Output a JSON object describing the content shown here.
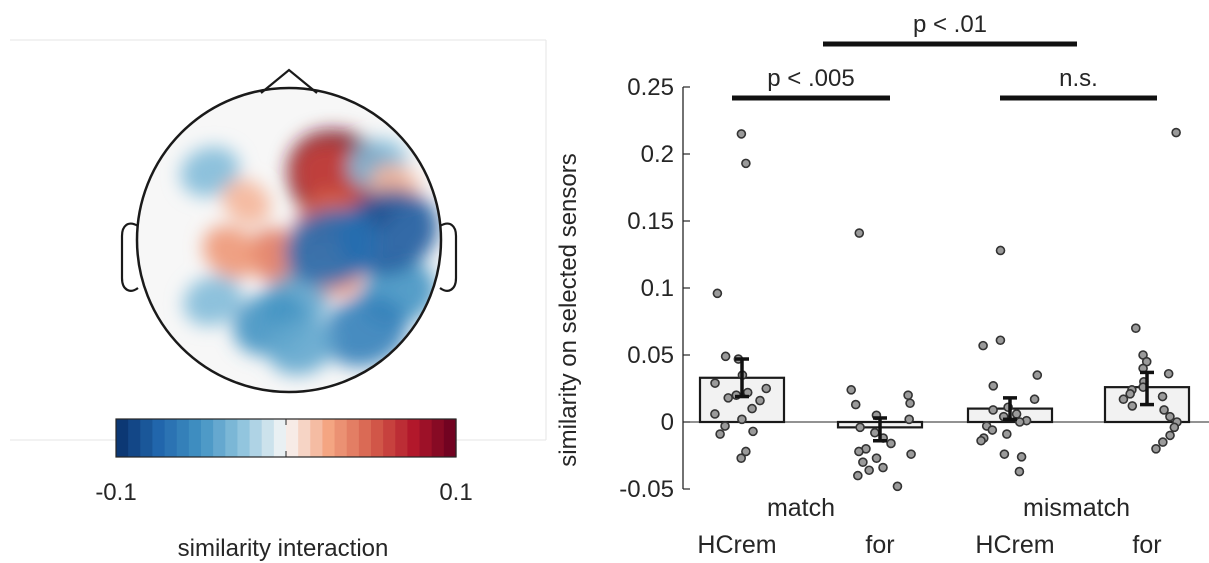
{
  "chart_data": [
    {
      "type": "heatmap",
      "subtype": "scalp-topography",
      "colorbar": {
        "min_label": "-0.1",
        "max_label": "0.1",
        "label": "similarity interaction",
        "low_color": "#08306b",
        "mid_color": "#f7f7f7",
        "high_color": "#67001f"
      },
      "blobs": [
        {
          "cx": 0.36,
          "cy": 0.38,
          "value": 0.11
        },
        {
          "cx": 0.3,
          "cy": 0.4,
          "value": 0.06
        },
        {
          "cx": 0.33,
          "cy": 0.1,
          "value": 0.05
        },
        {
          "cx": 0.28,
          "cy": 0.03,
          "value": 0.05
        },
        {
          "cx": -0.05,
          "cy": -0.12,
          "value": 0.04
        },
        {
          "cx": -0.38,
          "cy": -0.08,
          "value": 0.03
        },
        {
          "cx": -0.5,
          "cy": -0.4,
          "value": -0.03
        },
        {
          "cx": -0.52,
          "cy": 0.45,
          "value": -0.03
        },
        {
          "cx": 0.05,
          "cy": -0.4,
          "value": -0.04
        },
        {
          "cx": -0.12,
          "cy": -0.55,
          "value": -0.05
        },
        {
          "cx": 0.72,
          "cy": -0.35,
          "value": -0.05
        },
        {
          "cx": 0.58,
          "cy": 0.5,
          "value": -0.03
        },
        {
          "cx": -0.28,
          "cy": 0.25,
          "value": 0.02
        },
        {
          "cx": 0.7,
          "cy": 0.35,
          "value": 0.02
        },
        {
          "cx": 0.3,
          "cy": -0.2,
          "value": 0.03
        },
        {
          "cx": 0.65,
          "cy": 0.05,
          "value": -0.08
        },
        {
          "cx": 0.5,
          "cy": -0.6,
          "value": -0.06
        },
        {
          "cx": 0.28,
          "cy": -0.05,
          "value": -0.07
        },
        {
          "cx": 0.08,
          "cy": -0.7,
          "value": -0.04
        }
      ]
    },
    {
      "type": "bar",
      "subtype": "bar-with-points",
      "ylabel": "similarity on selected sensors",
      "ylim": [
        -0.05,
        0.25
      ],
      "yticks": [
        -0.05,
        0,
        0.05,
        0.1,
        0.15,
        0.2,
        0.25
      ],
      "ytick_labels": [
        "-0.05",
        "0",
        "0.05",
        "0.1",
        "0.15",
        "0.2",
        "0.25"
      ],
      "groups": [
        "match",
        "mismatch"
      ],
      "categories": [
        "HCrem",
        "for",
        "HCrem",
        "for"
      ],
      "bar_fill": "#f2f2f2",
      "bars": [
        {
          "group": "match",
          "category": "HCrem",
          "mean": 0.033,
          "err_low": 0.019,
          "err_high": 0.047,
          "points": [
            0.215,
            0.193,
            0.096,
            0.049,
            0.047,
            0.035,
            0.029,
            0.025,
            0.022,
            0.02,
            0.018,
            0.016,
            0.01,
            0.006,
            0.002,
            -0.003,
            -0.007,
            -0.009,
            -0.022,
            -0.027
          ]
        },
        {
          "group": "match",
          "category": "for",
          "mean": -0.004,
          "err_low": -0.014,
          "err_high": 0.003,
          "points": [
            0.141,
            0.024,
            0.02,
            0.014,
            0.013,
            0.005,
            0.002,
            -0.004,
            -0.008,
            -0.012,
            -0.016,
            -0.02,
            -0.022,
            -0.024,
            -0.027,
            -0.03,
            -0.034,
            -0.036,
            -0.04,
            -0.048
          ]
        },
        {
          "group": "mismatch",
          "category": "HCrem",
          "mean": 0.01,
          "err_low": 0.002,
          "err_high": 0.018,
          "points": [
            0.128,
            0.061,
            0.057,
            0.035,
            0.027,
            0.017,
            0.011,
            0.009,
            0.006,
            0.004,
            0.001,
            0.0,
            -0.003,
            -0.006,
            -0.009,
            -0.012,
            -0.014,
            -0.024,
            -0.026,
            -0.037
          ]
        },
        {
          "group": "mismatch",
          "category": "for",
          "mean": 0.026,
          "err_low": 0.013,
          "err_high": 0.037,
          "points": [
            0.216,
            0.07,
            0.05,
            0.045,
            0.04,
            0.036,
            0.03,
            0.026,
            0.024,
            0.021,
            0.019,
            0.017,
            0.012,
            0.009,
            0.004,
            0.0,
            -0.004,
            -0.01,
            -0.015,
            -0.02
          ]
        }
      ],
      "significance": [
        {
          "label": "p < .005",
          "from": 0,
          "to": 1,
          "level": 1
        },
        {
          "label": "n.s.",
          "from": 2,
          "to": 3,
          "level": 1
        },
        {
          "label": "p < .01",
          "from": 0.6,
          "to": 2.4,
          "level": 2
        }
      ]
    }
  ]
}
